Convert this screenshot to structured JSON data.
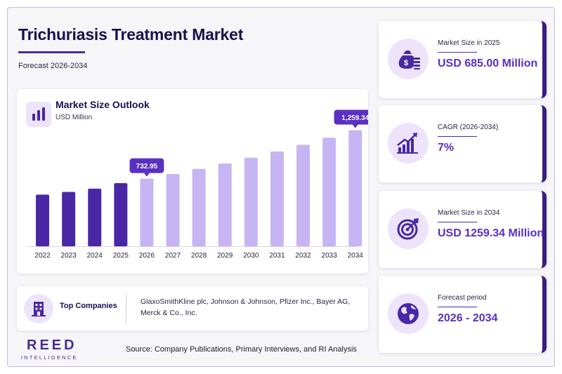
{
  "header": {
    "title": "Trichuriasis Treatment Market",
    "subtitle": "Forecast 2026-2034"
  },
  "chart_card": {
    "title": "Market Size Outlook",
    "unit": "USD Million",
    "icon": "bar-chart-icon"
  },
  "chart_data": {
    "type": "bar",
    "categories": [
      "2022",
      "2023",
      "2024",
      "2025",
      "2026",
      "2027",
      "2028",
      "2029",
      "2030",
      "2031",
      "2032",
      "2033",
      "2034"
    ],
    "values": [
      560,
      590,
      625,
      685,
      732.95,
      784,
      839,
      898,
      961,
      1028,
      1100,
      1177,
      1259.34
    ],
    "historical_color": "#4a27a5",
    "forecast_color": "#c6b5f2",
    "callout_color": "#5a2fc2",
    "callouts": [
      {
        "category": "2026",
        "label": "732.95"
      },
      {
        "category": "2034",
        "label": "1,259.34"
      }
    ],
    "ylim": [
      0,
      1400
    ],
    "grid": false
  },
  "companies": {
    "label": "Top Companies",
    "text": "GlaxoSmithKline plc, Johnson & Johnson, Pfizer Inc., Bayer AG, Merck & Co., Inc.",
    "icon": "building-icon"
  },
  "branding": {
    "logo_main": "REED",
    "logo_sub": "INTELLIGENCE"
  },
  "source": "Source: Company Publications, Primary Interviews, and RI Analysis",
  "stats": [
    {
      "label": "Market Size in 2025",
      "value": "USD 685.00 Million",
      "icon": "money-bag-icon"
    },
    {
      "label": "CAGR (2026-2034)",
      "value": "7%",
      "icon": "growth-chart-icon"
    },
    {
      "label": "Market Size in 2034",
      "value": "USD 1259.34 Million",
      "icon": "target-icon"
    },
    {
      "label": "Forecast period",
      "value": "2026 - 2034",
      "icon": "globe-icon"
    }
  ],
  "colors": {
    "accent": "#5a2fc2",
    "dark_accent": "#3b1d7e",
    "title": "#1b0f4d",
    "icon_bg": "#ede4fb"
  }
}
